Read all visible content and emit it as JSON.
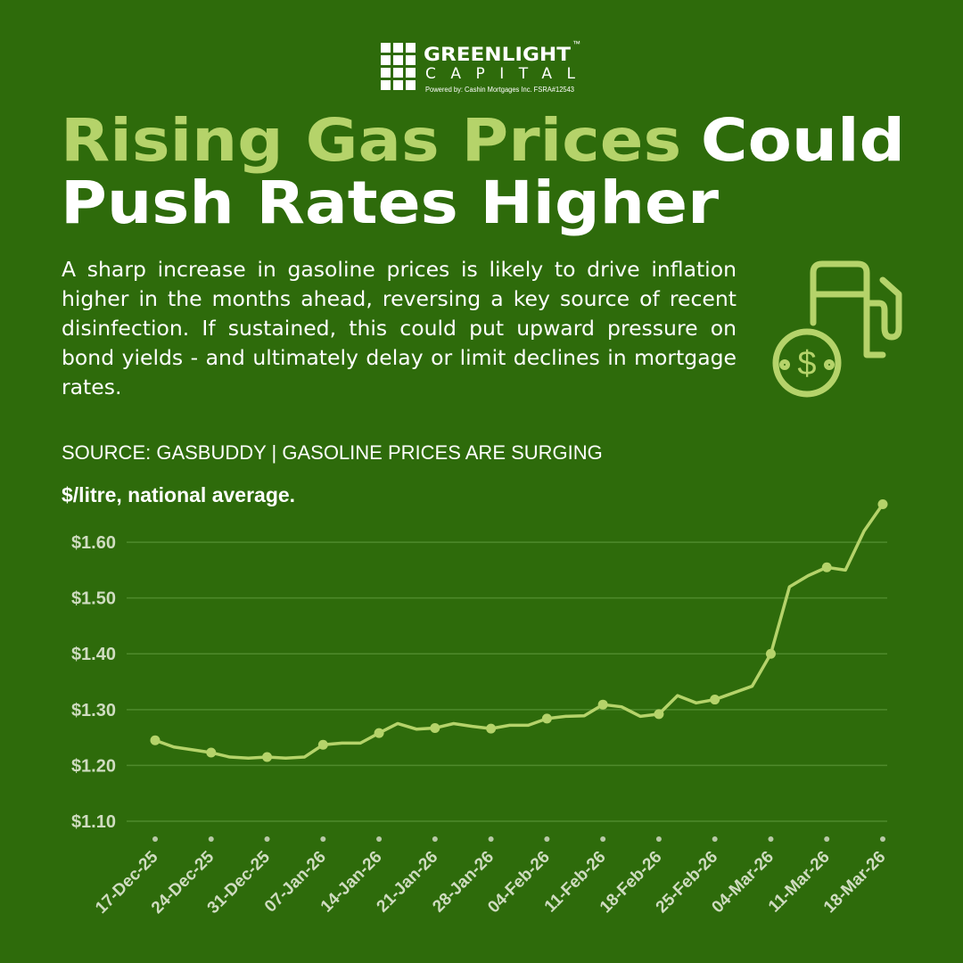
{
  "brand": {
    "name": "GREENLIGHT",
    "trademark": "™",
    "subname": "CAPITAL",
    "powered_by": "Powered by:  Cashin Mortgages Inc.  FSRA#12543"
  },
  "headline": [
    "Rising Gas Prices",
    "Could",
    "Push Rates Higher"
  ],
  "body": "A sharp increase in gasoline prices is likely to drive inflation higher in the months ahead, reversing a key source of recent disinfection. If sustained, this could put upward pressure on bond yields - and ultimately delay or limit declines in mortgage rates.",
  "chart_data": {
    "type": "line",
    "title": "SOURCE: GASBUDDY | GASOLINE PRICES ARE SURGING",
    "subtitle": "$/litre, national average.",
    "categories": [
      "17-Dec-25",
      null,
      null,
      "24-Dec-25",
      null,
      null,
      "31-Dec-25",
      null,
      null,
      "07-Jan-26",
      null,
      null,
      "14-Jan-26",
      null,
      null,
      "21-Jan-26",
      null,
      null,
      "28-Jan-26",
      null,
      null,
      "04-Feb-26",
      null,
      null,
      "11-Feb-26",
      null,
      null,
      "18-Feb-26",
      null,
      null,
      "25-Feb-26",
      null,
      null,
      "04-Mar-26",
      null,
      null,
      "11-Mar-26",
      null,
      null,
      "18-Mar-26"
    ],
    "series": [
      {
        "name": "Gasoline price",
        "color": "#b5d36a",
        "values": [
          1.245,
          1.233,
          1.228,
          1.223,
          1.215,
          1.213,
          1.215,
          1.213,
          1.215,
          1.237,
          1.24,
          1.24,
          1.258,
          1.275,
          1.265,
          1.267,
          1.275,
          1.27,
          1.266,
          1.272,
          1.272,
          1.284,
          1.288,
          1.289,
          1.309,
          1.305,
          1.288,
          1.292,
          1.325,
          1.312,
          1.318,
          1.33,
          1.342,
          1.4,
          1.52,
          1.54,
          1.555,
          1.55,
          1.62,
          1.668
        ]
      }
    ],
    "ylim": [
      1.1,
      1.68
    ],
    "yticks": [
      {
        "value": 1.1,
        "label": "$1.10"
      },
      {
        "value": 1.2,
        "label": "$1.20"
      },
      {
        "value": 1.3,
        "label": "$1.30"
      },
      {
        "value": 1.4,
        "label": "$1.40"
      },
      {
        "value": 1.5,
        "label": "$1.50"
      },
      {
        "value": 1.6,
        "label": "$1.60"
      }
    ],
    "grid": true
  }
}
